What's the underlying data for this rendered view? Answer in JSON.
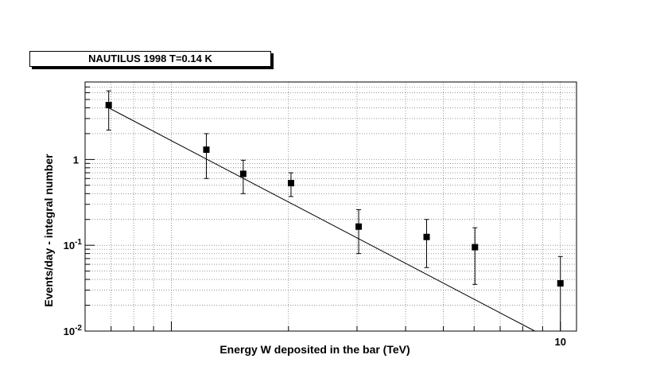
{
  "chart_data": {
    "type": "scatter",
    "title": "NAUTILUS 1998 T=0.14 K",
    "xlabel": "Energy W deposited in the bar (TeV)",
    "ylabel": "Events/day - integral number",
    "x_scale": "log",
    "y_scale": "log",
    "xlim": [
      0.6,
      11
    ],
    "ylim": [
      0.01,
      8
    ],
    "grid": true,
    "x_tick_labels": [
      {
        "value": 10,
        "label": "10"
      }
    ],
    "y_tick_labels": [
      {
        "value": 1,
        "base": "1",
        "exp": ""
      },
      {
        "value": 0.1,
        "base": "10",
        "exp": "-1"
      },
      {
        "value": 0.01,
        "base": "10",
        "exp": "-2"
      }
    ],
    "points": [
      {
        "x": 0.69,
        "y": 4.3,
        "y_low": 2.2,
        "y_high": 6.3
      },
      {
        "x": 1.23,
        "y": 1.3,
        "y_low": 0.6,
        "y_high": 2.0
      },
      {
        "x": 1.53,
        "y": 0.68,
        "y_low": 0.4,
        "y_high": 0.98
      },
      {
        "x": 2.03,
        "y": 0.53,
        "y_low": 0.37,
        "y_high": 0.7
      },
      {
        "x": 3.03,
        "y": 0.165,
        "y_low": 0.08,
        "y_high": 0.26
      },
      {
        "x": 4.53,
        "y": 0.125,
        "y_low": 0.055,
        "y_high": 0.2
      },
      {
        "x": 6.03,
        "y": 0.095,
        "y_low": 0.035,
        "y_high": 0.16
      },
      {
        "x": 10.0,
        "y": 0.036,
        "y_low": 0.008,
        "y_high": 0.074
      }
    ],
    "fit_curve": [
      {
        "x": 0.69,
        "y": 4.0
      },
      {
        "x": 8.6,
        "y": 0.01
      }
    ]
  }
}
